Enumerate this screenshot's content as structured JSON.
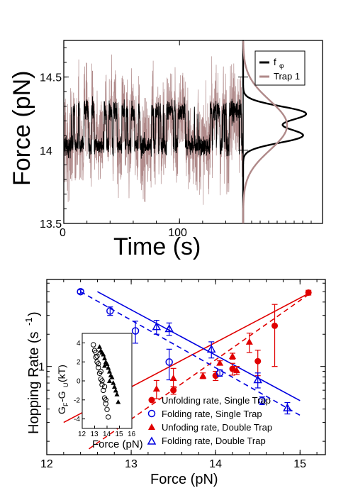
{
  "chart_data": [
    {
      "type": "line",
      "panel": "top",
      "xlabel": "Time (s)",
      "ylabel": "Force (pN)",
      "xlim": [
        0,
        155
      ],
      "ylim": [
        13.5,
        14.75
      ],
      "xticks": [
        "0",
        "100"
      ],
      "yticks": [
        "13.5",
        "14",
        "14.5"
      ],
      "series": [
        {
          "name": "f_φ",
          "color": "#000000",
          "levels": [
            14.03,
            14.27
          ],
          "noise": 0.05
        },
        {
          "name": "Trap 1",
          "color": "#b08a8a",
          "levels": [
            14.03,
            14.27
          ],
          "noise": 0.22
        }
      ],
      "legend": {
        "labels": [
          "f",
          "φ",
          "Trap 1"
        ],
        "placement": "top-right"
      },
      "histograms": [
        {
          "series": "f_φ",
          "shape": "bimodal",
          "peaks": [
            14.1,
            14.25
          ]
        },
        {
          "series": "Trap 1",
          "shape": "broad",
          "peak": 14.17
        }
      ]
    },
    {
      "type": "scatter",
      "panel": "bottom",
      "xlabel": "Force (pN)",
      "ylabel": "Hopping Rate (s",
      "ylabel_sup": "-1",
      "ylabel_close": ")",
      "xlim": [
        12,
        15.3
      ],
      "ylog": true,
      "ylim": [
        0.15,
        6.5
      ],
      "xticks": [
        "12",
        "13",
        "14",
        "15"
      ],
      "ytick_label": "1",
      "series": [
        {
          "name": "Unfolding rate, Single Trap",
          "marker": "filled-circle",
          "color": "#e00000",
          "x": [
            13.5,
            14.0,
            14.2,
            14.5,
            14.7,
            15.1
          ],
          "y": [
            0.6,
            0.82,
            0.95,
            1.12,
            2.4,
            4.9
          ],
          "err": [
            0.05,
            0.08,
            0.12,
            0.3,
            1.4,
            0.25
          ]
        },
        {
          "name": "Folding rate, Single Trap",
          "marker": "open-circle",
          "color": "#0000e0",
          "x": [
            12.4,
            12.75,
            13.05,
            13.45,
            14.05,
            14.55
          ],
          "y": [
            5.0,
            3.3,
            2.15,
            1.1,
            0.87,
            0.48
          ],
          "err": [
            0.2,
            0.3,
            0.5,
            0.35,
            0.06,
            0.04
          ]
        },
        {
          "name": "Unfoding rate, Double Trap",
          "marker": "filled-triangle",
          "color": "#e00000",
          "x": [
            13.3,
            13.5,
            13.85,
            14.05,
            14.2,
            14.25,
            14.4
          ],
          "y": [
            0.62,
            0.78,
            0.82,
            1.08,
            1.25,
            0.92,
            1.7
          ],
          "err": [
            0.12,
            0.18,
            0.05,
            0.05,
            0.08,
            0.08,
            0.35
          ]
        },
        {
          "name": "Folding rate, Double Trap",
          "marker": "open-triangle",
          "color": "#0000e0",
          "x": [
            13.3,
            13.45,
            13.95,
            14.5,
            14.85
          ],
          "y": [
            2.35,
            2.25,
            1.45,
            0.75,
            0.41
          ],
          "err": [
            0.35,
            0.3,
            0.25,
            0.12,
            0.05
          ]
        }
      ],
      "fit_lines": [
        {
          "style": "solid",
          "color": "#e00000",
          "from": [
            12.2,
            0.3
          ],
          "to": [
            15.1,
            4.8
          ]
        },
        {
          "style": "dashed",
          "color": "#e00000",
          "from": [
            12.5,
            0.17
          ],
          "to": [
            15.1,
            4.7
          ]
        },
        {
          "style": "solid",
          "color": "#0000e0",
          "from": [
            12.6,
            5.0
          ],
          "to": [
            15.0,
            0.48
          ]
        },
        {
          "style": "dashed",
          "color": "#0000e0",
          "from": [
            12.4,
            5.0
          ],
          "to": [
            15.0,
            0.35
          ]
        }
      ],
      "legend_placement": "bottom-right",
      "inset": {
        "type": "scatter",
        "xlabel": "Force (pN)",
        "ylabel": "G",
        "ylabel_parts": [
          "F",
          "-G",
          "U",
          " (kT)"
        ],
        "xlim": [
          12,
          16
        ],
        "ylim": [
          -5,
          5
        ],
        "xticks": [
          "12",
          "13",
          "14",
          "15",
          "16"
        ],
        "yticks": [
          "4",
          "2",
          "0",
          "-2",
          "-4"
        ],
        "series": [
          {
            "name": "Single Trap",
            "marker": "open-circle",
            "color": "#000000",
            "x": [
              12.9,
              13.0,
              13.1,
              13.2,
              13.3,
              13.4,
              13.5,
              13.6,
              13.7,
              13.8,
              13.9,
              14.0,
              14.1,
              13.1,
              13.3,
              13.6,
              13.9,
              13.2,
              13.5,
              13.8
            ],
            "y": [
              3.8,
              3.2,
              2.5,
              2.0,
              1.4,
              0.8,
              0.2,
              -0.4,
              -1.0,
              -1.8,
              -2.4,
              -3.0,
              -3.8,
              3.0,
              1.8,
              0.0,
              -2.0,
              2.6,
              1.0,
              -0.6
            ]
          },
          {
            "name": "Double Trap",
            "marker": "filled-triangle",
            "color": "#000000",
            "x": [
              13.4,
              13.6,
              13.8,
              14.0,
              14.2,
              14.4,
              14.6,
              14.8,
              14.9,
              13.5,
              13.7,
              13.9,
              14.1,
              14.3,
              14.5,
              14.7,
              13.8,
              14.2
            ],
            "y": [
              3.6,
              3.0,
              2.4,
              1.8,
              1.0,
              0.4,
              -0.6,
              -1.4,
              -2.2,
              3.2,
              2.8,
              2.0,
              1.4,
              0.6,
              -0.2,
              -1.0,
              1.6,
              0.0
            ]
          }
        ]
      }
    }
  ]
}
